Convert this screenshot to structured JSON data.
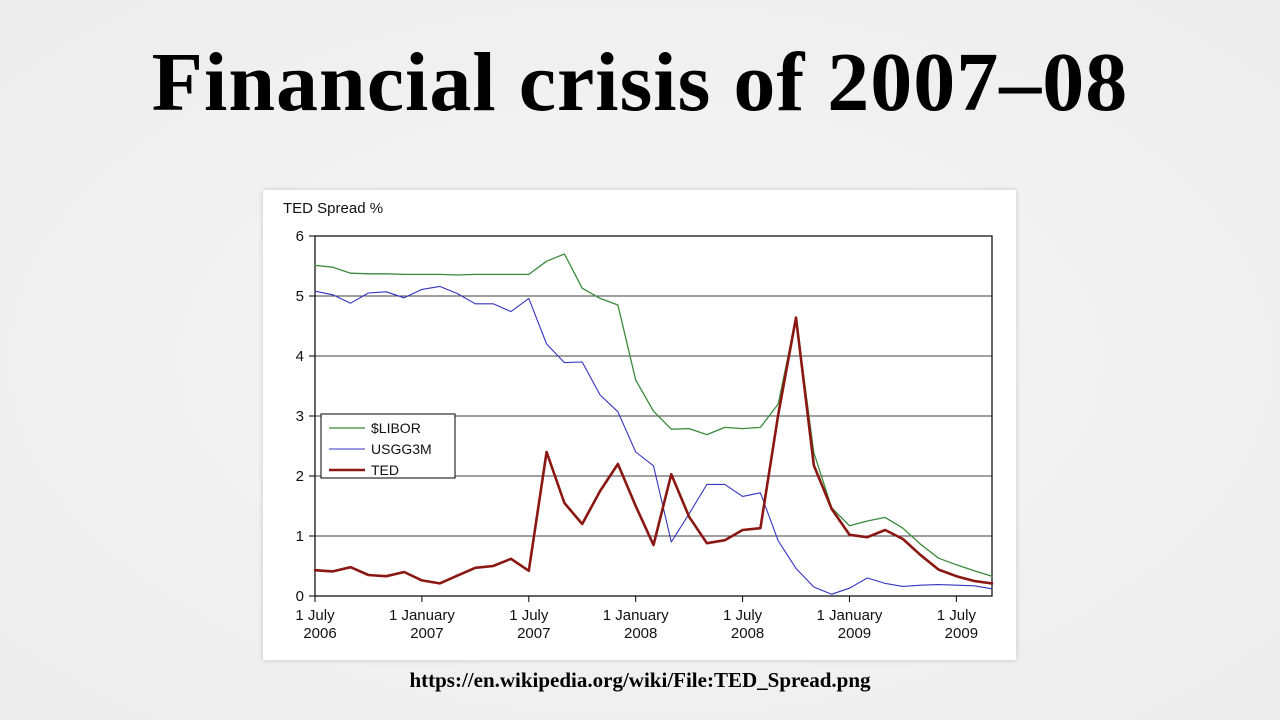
{
  "slide": {
    "title": "Financial crisis of 2007–08",
    "caption_url": "https://en.wikipedia.org/wiki/File:TED_Spread.png"
  },
  "chart_data": {
    "type": "line",
    "title": "TED Spread %",
    "xlabel": "",
    "ylabel": "TED Spread %",
    "ylim": [
      0,
      6
    ],
    "yticks": [
      0,
      1,
      2,
      3,
      4,
      5,
      6
    ],
    "grid": "horizontal",
    "legend_position": "middle-left",
    "x_labels": [
      "2006-07",
      "2006-08",
      "2006-09",
      "2006-10",
      "2006-11",
      "2006-12",
      "2007-01",
      "2007-02",
      "2007-03",
      "2007-04",
      "2007-05",
      "2007-06",
      "2007-07",
      "2007-08",
      "2007-09",
      "2007-10",
      "2007-11",
      "2007-12",
      "2008-01",
      "2008-02",
      "2008-03",
      "2008-04",
      "2008-05",
      "2008-06",
      "2008-07",
      "2008-08",
      "2008-09",
      "2008-10",
      "2008-11",
      "2008-12",
      "2009-01",
      "2009-02",
      "2009-03",
      "2009-04",
      "2009-05",
      "2009-06",
      "2009-07",
      "2009-08",
      "2009-09"
    ],
    "x_ticks": [
      {
        "i": 0,
        "line1": "1 July",
        "line2": "2006"
      },
      {
        "i": 6,
        "line1": "1 January",
        "line2": "2007"
      },
      {
        "i": 12,
        "line1": "1 July",
        "line2": "2007"
      },
      {
        "i": 18,
        "line1": "1 January",
        "line2": "2008"
      },
      {
        "i": 24,
        "line1": "1 July",
        "line2": "2008"
      },
      {
        "i": 30,
        "line1": "1 January",
        "line2": "2009"
      },
      {
        "i": 36,
        "line1": "1 July",
        "line2": "2009"
      }
    ],
    "series": [
      {
        "name": "$LIBOR",
        "color": "#3a8a3a",
        "width": 1.3,
        "values": [
          5.51,
          5.48,
          5.38,
          5.37,
          5.37,
          5.36,
          5.36,
          5.36,
          5.35,
          5.36,
          5.36,
          5.36,
          5.36,
          5.58,
          5.7,
          5.13,
          4.96,
          4.85,
          3.6,
          3.08,
          2.78,
          2.79,
          2.69,
          2.81,
          2.79,
          2.81,
          3.2,
          4.64,
          2.39,
          1.47,
          1.17,
          1.25,
          1.31,
          1.13,
          0.86,
          0.63,
          0.52,
          0.42,
          0.33
        ]
      },
      {
        "name": "USGG3M",
        "color": "#3434c0",
        "width": 1.1,
        "values": [
          5.08,
          5.02,
          4.88,
          5.05,
          5.07,
          4.97,
          5.11,
          5.16,
          5.04,
          4.87,
          4.87,
          4.74,
          4.96,
          4.2,
          3.89,
          3.9,
          3.35,
          3.07,
          2.4,
          2.17,
          0.9,
          1.37,
          1.86,
          1.86,
          1.66,
          1.72,
          0.92,
          0.46,
          0.15,
          0.03,
          0.13,
          0.3,
          0.21,
          0.16,
          0.18,
          0.19,
          0.18,
          0.17,
          0.12
        ]
      },
      {
        "name": "TED",
        "color": "#8b1713",
        "width": 2.6,
        "values": [
          0.43,
          0.41,
          0.48,
          0.35,
          0.33,
          0.4,
          0.26,
          0.21,
          0.34,
          0.47,
          0.5,
          0.62,
          0.42,
          2.4,
          1.55,
          1.2,
          1.75,
          2.2,
          1.5,
          0.85,
          2.03,
          1.32,
          0.88,
          0.93,
          1.1,
          1.13,
          3.02,
          4.64,
          2.18,
          1.45,
          1.02,
          0.98,
          1.1,
          0.95,
          0.68,
          0.44,
          0.33,
          0.25,
          0.21
        ]
      }
    ]
  }
}
